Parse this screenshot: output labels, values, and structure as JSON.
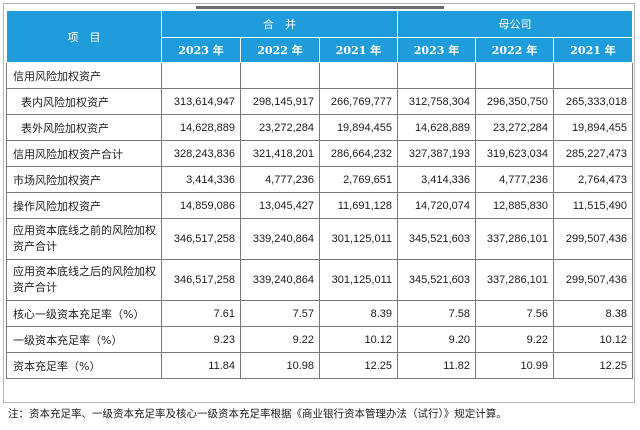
{
  "header": {
    "item_label": "项　目",
    "group_consolidated": "合　并",
    "group_parent": "母公司",
    "years": [
      "2023 年",
      "2022 年",
      "2021 年",
      "2023 年",
      "2022 年",
      "2021 年"
    ]
  },
  "rows": [
    {
      "label": "信用风险加权资产",
      "values": [
        "",
        "",
        "",
        "",
        "",
        ""
      ]
    },
    {
      "label": "表内风险加权资产",
      "values": [
        "313,614,947",
        "298,145,917",
        "266,769,777",
        "312,758,304",
        "296,350,750",
        "265,333,018"
      ]
    },
    {
      "label": "表外风险加权资产",
      "values": [
        "14,628,889",
        "23,272,284",
        "19,894,455",
        "14,628,889",
        "23,272,284",
        "19,894,455"
      ]
    },
    {
      "label": "信用风险加权资产合计",
      "values": [
        "328,243,836",
        "321,418,201",
        "286,664,232",
        "327,387,193",
        "319,623,034",
        "285,227,473"
      ]
    },
    {
      "label": "市场风险加权资产",
      "values": [
        "3,414,336",
        "4,777,236",
        "2,769,651",
        "3,414,336",
        "4,777,236",
        "2,764,473"
      ]
    },
    {
      "label": "操作风险加权资产",
      "values": [
        "14,859,086",
        "13,045,427",
        "11,691,128",
        "14,720,074",
        "12,885,830",
        "11,515,490"
      ]
    },
    {
      "label": "应用资本底线之前的风险加权资产合计",
      "values": [
        "346,517,258",
        "339,240,864",
        "301,125,011",
        "345,521,603",
        "337,286,101",
        "299,507,436"
      ]
    },
    {
      "label": "应用资本底线之后的风险加权资产合计",
      "values": [
        "346,517,258",
        "339,240,864",
        "301,125,011",
        "345,521,603",
        "337,286,101",
        "299,507,436"
      ]
    },
    {
      "label": "核心一级资本充足率（%）",
      "values": [
        "7.61",
        "7.57",
        "8.39",
        "7.58",
        "7.56",
        "8.38"
      ]
    },
    {
      "label": "一级资本充足率（%）",
      "values": [
        "9.23",
        "9.22",
        "10.12",
        "9.20",
        "9.22",
        "10.12"
      ]
    },
    {
      "label": "资本充足率（%）",
      "values": [
        "11.84",
        "10.98",
        "12.25",
        "11.82",
        "10.99",
        "12.25"
      ]
    }
  ],
  "note": "注：资本充足率、一级资本充足率及核心一级资本充足率根据《商业银行资本管理办法（试行）》规定计算。"
}
